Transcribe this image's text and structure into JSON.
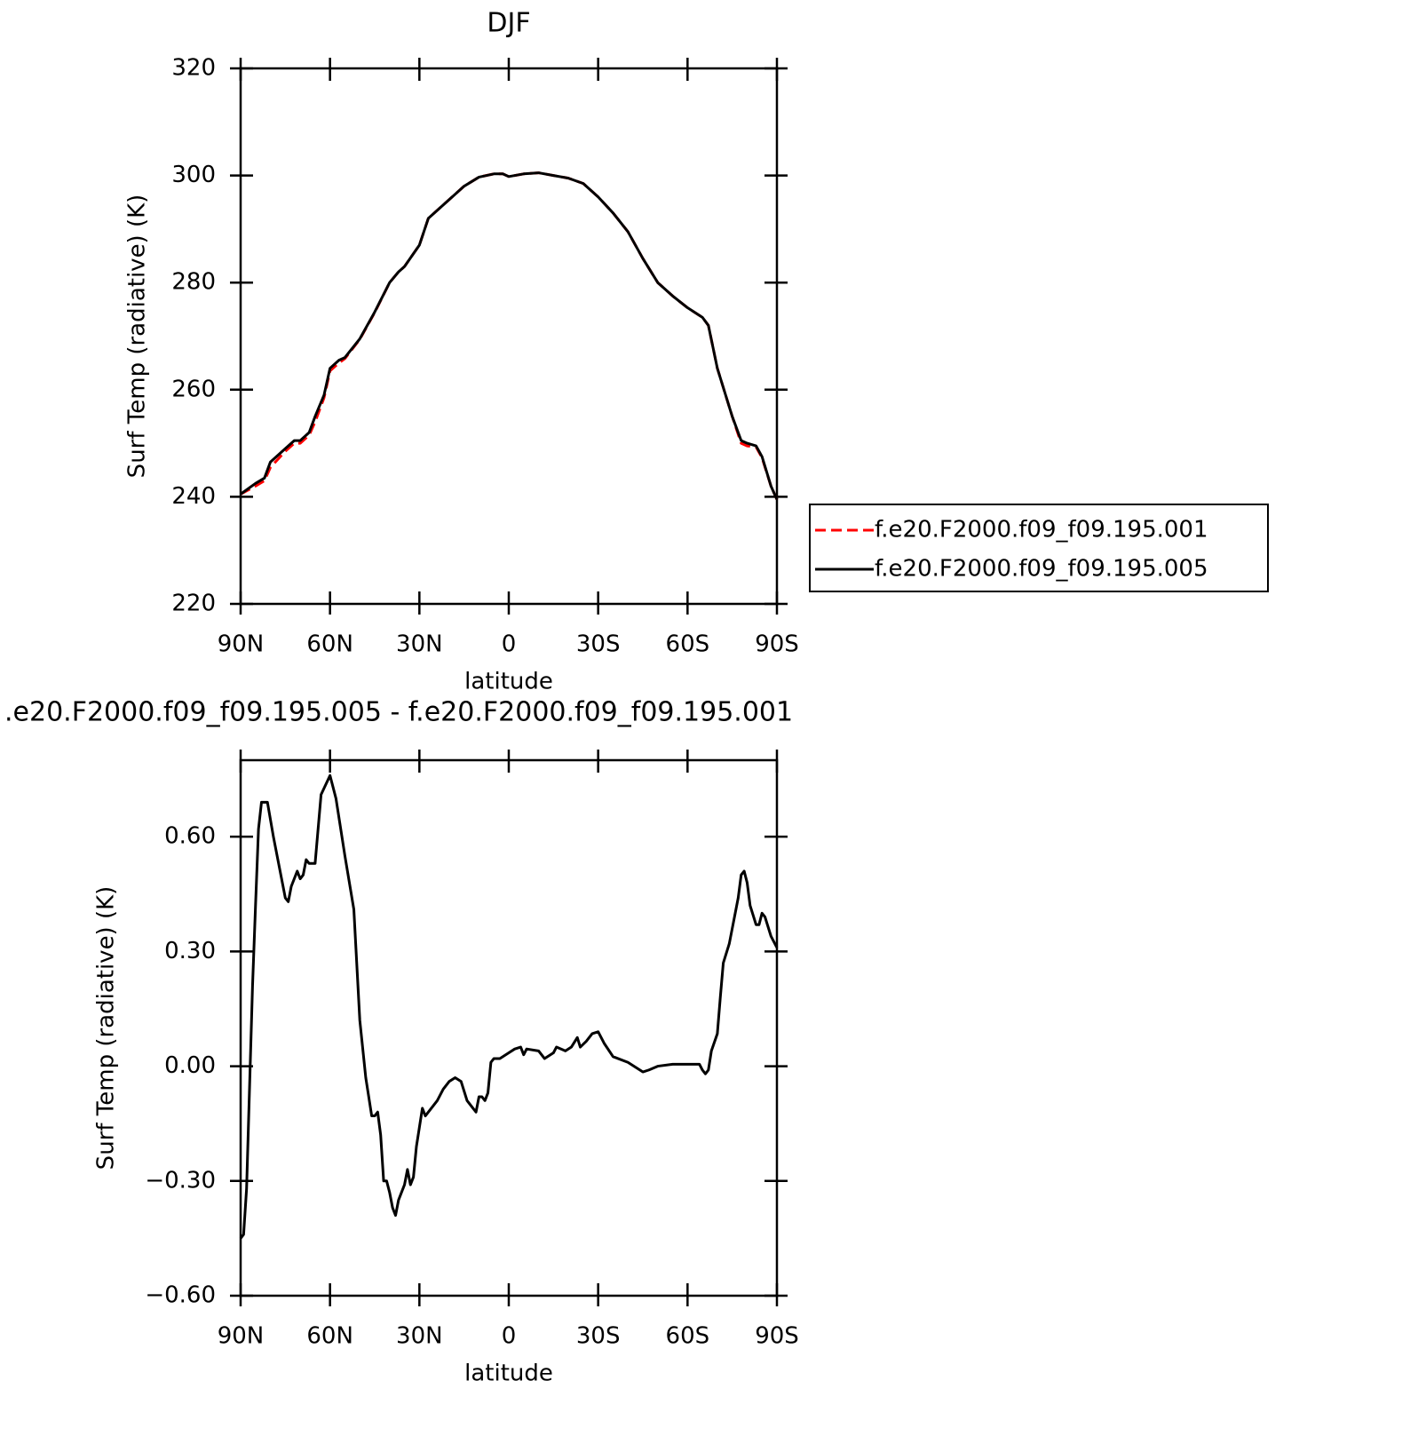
{
  "chart_data": [
    {
      "type": "line",
      "title": "DJF",
      "xlabel": "latitude",
      "ylabel": "Surf Temp (radiative) (K)",
      "xlim": [
        90,
        -90
      ],
      "xticks": [
        {
          "value": 90,
          "label": "90N"
        },
        {
          "value": 60,
          "label": "60N"
        },
        {
          "value": 30,
          "label": "30N"
        },
        0,
        {
          "value": -30,
          "label": "30S"
        },
        {
          "value": -60,
          "label": "60S"
        },
        {
          "value": -90,
          "label": "90S"
        }
      ],
      "ylim": [
        220,
        320
      ],
      "yticks": [
        220,
        240,
        260,
        280,
        300,
        320
      ],
      "legend": "right",
      "x": [
        90,
        85,
        82,
        80,
        75,
        72,
        70,
        67,
        65,
        62,
        60,
        57,
        55,
        50,
        45,
        40,
        37,
        35,
        30,
        27,
        20,
        15,
        10,
        5,
        2,
        0,
        -5,
        -10,
        -15,
        -20,
        -25,
        -30,
        -35,
        -40,
        -45,
        -50,
        -55,
        -60,
        -65,
        -67,
        -70,
        -75,
        -78,
        -80,
        -83,
        -85,
        -88,
        -90
      ],
      "series": [
        {
          "name": "f.e20.F2000.f09_f09.195.001",
          "color": "#ff0000",
          "linestyle": "dashed",
          "values": [
            240.5,
            242,
            243,
            245.5,
            248.5,
            250,
            250,
            251.5,
            254,
            258.5,
            263.5,
            265,
            265.8,
            269.4,
            274.4,
            280,
            282,
            283,
            287,
            292,
            295.5,
            298,
            299.7,
            300.3,
            300.3,
            299.8,
            300.3,
            300.5,
            300,
            299.5,
            298.5,
            296,
            293,
            289.5,
            284.5,
            280,
            277.5,
            275.3,
            273.5,
            272,
            264,
            255,
            250,
            249.5,
            249.3,
            247.3,
            242,
            239.5
          ]
        },
        {
          "name": "f.e20.F2000.f09_f09.195.005",
          "color": "#000000",
          "linestyle": "solid",
          "values": [
            240.5,
            242.5,
            243.5,
            246.5,
            249,
            250.5,
            250.5,
            252,
            255,
            259,
            264,
            265.5,
            266,
            269.5,
            274.5,
            280,
            282,
            283,
            287,
            292,
            295.5,
            298,
            299.7,
            300.3,
            300.3,
            299.8,
            300.3,
            300.5,
            300,
            299.5,
            298.5,
            296,
            293,
            289.5,
            284.5,
            280,
            277.5,
            275.3,
            273.5,
            272,
            264,
            255,
            250.5,
            250,
            249.5,
            247.5,
            242,
            239.5
          ]
        }
      ]
    },
    {
      "type": "line",
      "title": ".e20.F2000.f09_f09.195.005 - f.e20.F2000.f09_f09.195.001",
      "xlabel": "latitude",
      "ylabel": "Surf Temp (radiative) (K)",
      "xlim": [
        90,
        -90
      ],
      "xticks": [
        {
          "value": 90,
          "label": "90N"
        },
        {
          "value": 60,
          "label": "60N"
        },
        {
          "value": 30,
          "label": "30N"
        },
        0,
        {
          "value": -30,
          "label": "30S"
        },
        {
          "value": -60,
          "label": "60S"
        },
        {
          "value": -90,
          "label": "90S"
        }
      ],
      "ylim": [
        -0.6,
        0.8
      ],
      "yticks": [
        {
          "value": -0.6,
          "label": "−0.60"
        },
        {
          "value": -0.3,
          "label": "−0.30"
        },
        {
          "value": 0,
          "label": "0.00"
        },
        {
          "value": 0.3,
          "label": "0.30"
        },
        {
          "value": 0.6,
          "label": "0.60"
        }
      ],
      "x": [
        90,
        89,
        88,
        86,
        85,
        84,
        83,
        81,
        79,
        77,
        75,
        74,
        73,
        71,
        70,
        69,
        68,
        67,
        65,
        63,
        60,
        58,
        55,
        52,
        50,
        48,
        46,
        45,
        44,
        43,
        42,
        41,
        40,
        39,
        38,
        37,
        36,
        35,
        34,
        33,
        32,
        31,
        29,
        28,
        26,
        24,
        22,
        20,
        18,
        16,
        14,
        12,
        11,
        10,
        9,
        8,
        7,
        6,
        5,
        3,
        0,
        -2,
        -4,
        -5,
        -6,
        -10,
        -12,
        -15,
        -16,
        -19,
        -21,
        -23,
        -24,
        -26,
        -28,
        -30,
        -32,
        -35,
        -40,
        -45,
        -47,
        -50,
        -55,
        -60,
        -64,
        -65,
        -66,
        -67,
        -68,
        -70,
        -71,
        -72,
        -74,
        -75,
        -76,
        -77,
        -78,
        -79,
        -80,
        -81,
        -83,
        -84,
        -85,
        -86,
        -88,
        -90
      ],
      "series": [
        {
          "color": "#000000",
          "linestyle": "solid",
          "values": [
            -0.45,
            -0.44,
            -0.32,
            0.21,
            0.42,
            0.62,
            0.69,
            0.69,
            0.6,
            0.52,
            0.44,
            0.43,
            0.47,
            0.51,
            0.49,
            0.5,
            0.54,
            0.53,
            0.53,
            0.71,
            0.76,
            0.7,
            0.55,
            0.41,
            0.12,
            -0.03,
            -0.13,
            -0.13,
            -0.12,
            -0.18,
            -0.3,
            -0.3,
            -0.33,
            -0.37,
            -0.39,
            -0.35,
            -0.33,
            -0.31,
            -0.27,
            -0.31,
            -0.29,
            -0.21,
            -0.11,
            -0.13,
            -0.11,
            -0.09,
            -0.06,
            -0.04,
            -0.03,
            -0.04,
            -0.09,
            -0.11,
            -0.12,
            -0.08,
            -0.08,
            -0.09,
            -0.07,
            0.01,
            0.02,
            0.02,
            0.035,
            0.045,
            0.05,
            0.03,
            0.045,
            0.04,
            0.02,
            0.035,
            0.05,
            0.04,
            0.05,
            0.075,
            0.05,
            0.065,
            0.085,
            0.09,
            0.06,
            0.025,
            0.01,
            -0.015,
            -0.01,
            0,
            0.005,
            0.005,
            0.005,
            -0.01,
            -0.02,
            -0.01,
            0.04,
            0.085,
            0.18,
            0.27,
            0.32,
            0.36,
            0.4,
            0.44,
            0.5,
            0.51,
            0.48,
            0.42,
            0.37,
            0.37,
            0.4,
            0.39,
            0.34,
            0.31
          ]
        }
      ]
    }
  ]
}
